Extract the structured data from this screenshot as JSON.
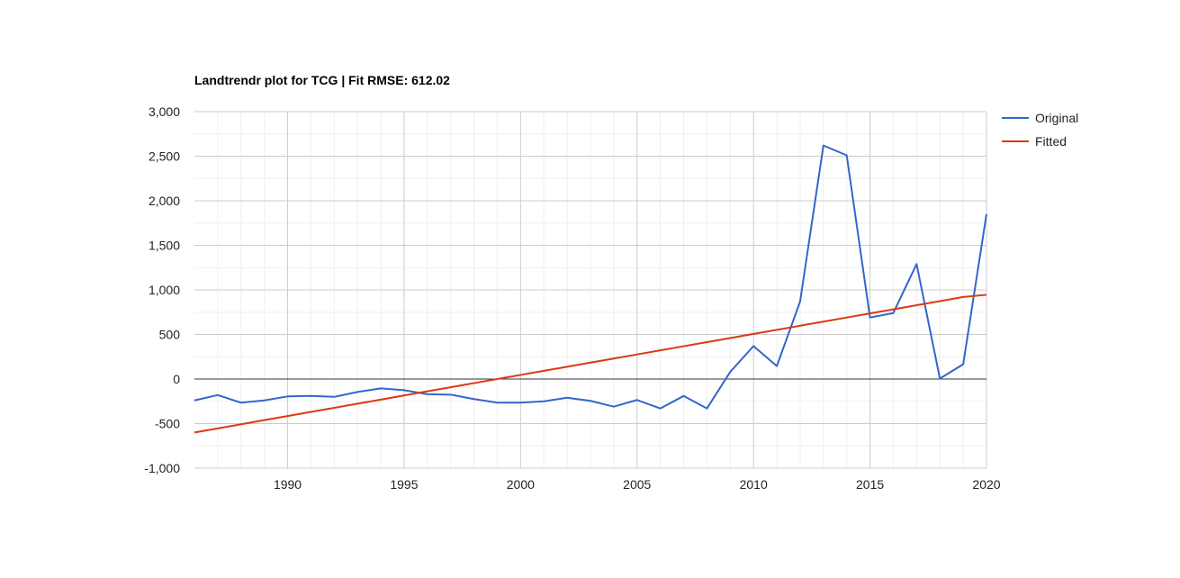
{
  "chart_data": {
    "type": "line",
    "title": "Landtrendr plot for TCG | Fit RMSE: 612.02",
    "xlabel": "",
    "ylabel": "",
    "xlim": [
      1986,
      2020
    ],
    "ylim": [
      -1000,
      3000
    ],
    "x_ticks": [
      1990,
      1995,
      2000,
      2005,
      2010,
      2015,
      2020
    ],
    "x_tick_labels": [
      "1990",
      "1995",
      "2000",
      "2005",
      "2010",
      "2015",
      "2020"
    ],
    "y_ticks": [
      -1000,
      -500,
      0,
      500,
      1000,
      1500,
      2000,
      2500,
      3000
    ],
    "y_tick_labels": [
      "-1,000",
      "-500",
      "0",
      "500",
      "1,000",
      "1,500",
      "2,000",
      "2,500",
      "3,000"
    ],
    "grid": true,
    "legend_position": "right",
    "x": [
      1986,
      1987,
      1988,
      1989,
      1990,
      1991,
      1992,
      1993,
      1994,
      1995,
      1996,
      1997,
      1998,
      1999,
      2000,
      2001,
      2002,
      2003,
      2004,
      2005,
      2006,
      2007,
      2008,
      2009,
      2010,
      2011,
      2012,
      2013,
      2014,
      2015,
      2016,
      2017,
      2018,
      2019,
      2020
    ],
    "series": [
      {
        "name": "Original",
        "color": "#3366cc",
        "values": [
          -240,
          -180,
          -265,
          -240,
          -195,
          -190,
          -200,
          -145,
          -105,
          -125,
          -170,
          -175,
          -225,
          -265,
          -265,
          -250,
          -210,
          -245,
          -310,
          -235,
          -330,
          -190,
          -330,
          80,
          370,
          145,
          870,
          2620,
          2510,
          690,
          740,
          1290,
          5,
          165,
          1850
        ]
      },
      {
        "name": "Fitted",
        "color": "#dc3912",
        "values": [
          -600,
          -554,
          -508,
          -461,
          -415,
          -369,
          -323,
          -277,
          -231,
          -184,
          -138,
          -92,
          -46,
          0,
          46,
          92,
          138,
          184,
          230,
          276,
          322,
          368,
          414,
          460,
          506,
          552,
          598,
          644,
          690,
          736,
          782,
          828,
          874,
          920,
          945
        ]
      }
    ]
  }
}
